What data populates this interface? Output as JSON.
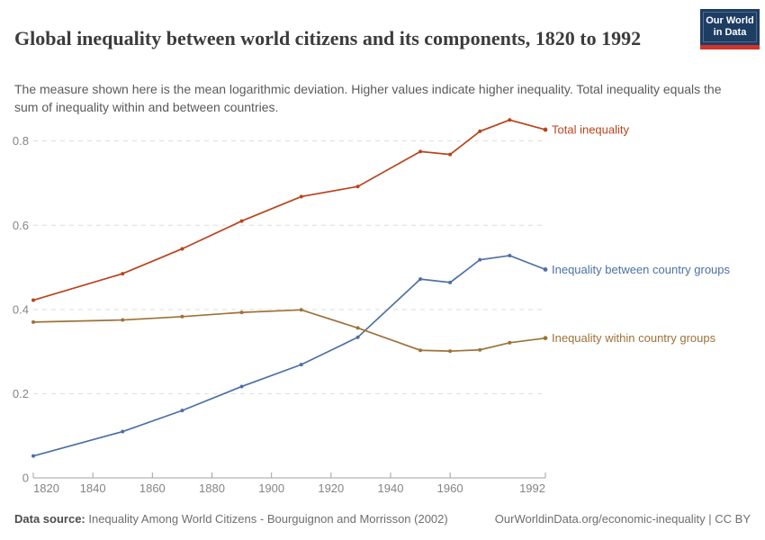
{
  "header": {
    "title": "Global inequality between world citizens and its components, 1820 to 1992",
    "subtitle": "The measure shown here is the mean logarithmic deviation. Higher values indicate higher inequality. Total inequality equals the sum of inequality within and between countries.",
    "logo": {
      "line1": "Our World",
      "line2": "in Data"
    }
  },
  "chart_data": {
    "type": "line",
    "title": "Global inequality between world citizens and its components, 1820 to 1992",
    "x": [
      1820,
      1850,
      1870,
      1890,
      1910,
      1929,
      1950,
      1960,
      1970,
      1980,
      1992
    ],
    "series": [
      {
        "name": "Total inequality",
        "color": "#b8441d",
        "values": [
          0.422,
          0.485,
          0.544,
          0.61,
          0.668,
          0.692,
          0.775,
          0.768,
          0.823,
          0.85,
          0.827
        ]
      },
      {
        "name": "Inequality between country groups",
        "color": "#4c70a6",
        "values": [
          0.052,
          0.11,
          0.16,
          0.217,
          0.269,
          0.334,
          0.472,
          0.464,
          0.518,
          0.528,
          0.495
        ]
      },
      {
        "name": "Inequality within country groups",
        "color": "#9e7239",
        "values": [
          0.37,
          0.375,
          0.383,
          0.393,
          0.399,
          0.356,
          0.303,
          0.301,
          0.304,
          0.321,
          0.332
        ]
      }
    ],
    "xlabel": "",
    "ylabel": "",
    "x_ticks": [
      1820,
      1840,
      1860,
      1880,
      1900,
      1920,
      1940,
      1960,
      1992
    ],
    "y_ticks": [
      0,
      0.2,
      0.4,
      0.6,
      0.8
    ],
    "xlim": [
      1820,
      1992
    ],
    "ylim": [
      0,
      0.88
    ],
    "grid": "horizontal-dashed",
    "legend": "line-end-labels"
  },
  "footer": {
    "source_label": "Data source:",
    "source_text": " Inequality Among World Citizens - Bourguignon and Morrisson (2002)",
    "credit": "OurWorldinData.org/economic-inequality | CC BY"
  }
}
